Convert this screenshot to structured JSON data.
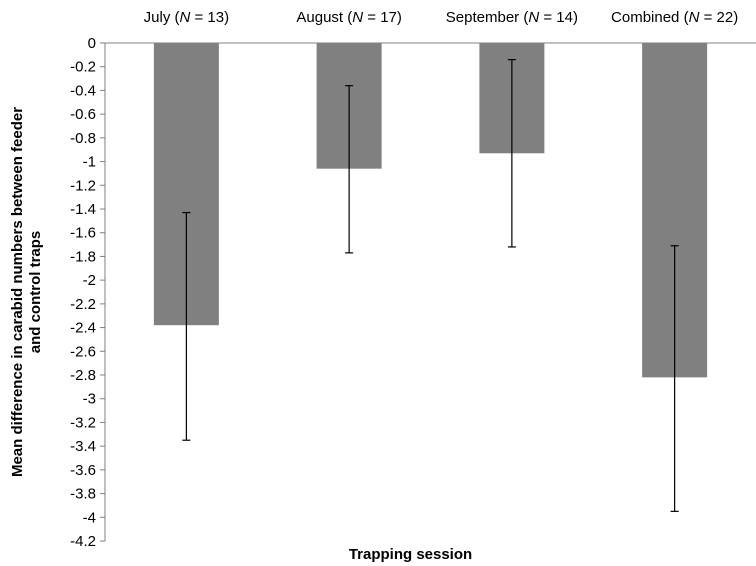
{
  "chart_data": {
    "type": "bar",
    "title": "",
    "xlabel": "Trapping session",
    "ylabel_lines": [
      "Mean difference in carabid numbers between feeder",
      "and control traps"
    ],
    "categories": [
      {
        "prefix": "July (",
        "n": "N",
        "suffix": " = 13)"
      },
      {
        "prefix": "August (",
        "n": "N",
        "suffix": " = 17)"
      },
      {
        "prefix": "September (",
        "n": "N",
        "suffix": " = 14)"
      },
      {
        "prefix": "Combined (",
        "n": "N",
        "suffix": " = 22)"
      }
    ],
    "values": [
      -2.38,
      -1.06,
      -0.93,
      -2.82
    ],
    "error_low": [
      -3.35,
      -1.77,
      -1.72,
      -3.95
    ],
    "error_high": [
      -1.43,
      -0.36,
      -0.14,
      -1.71
    ],
    "ylim": [
      -4.2,
      0
    ],
    "yticks": [
      "0",
      "-0.2",
      "-0.4",
      "-0.6",
      "-0.8",
      "-1",
      "-1.2",
      "-1.4",
      "-1.6",
      "-1.8",
      "-2",
      "-2.2",
      "-2.4",
      "-2.6",
      "-2.8",
      "-3",
      "-3.2",
      "-3.4",
      "-3.6",
      "-3.8",
      "-4",
      "-4.2"
    ],
    "bar_color": "#808080",
    "axis_color": "#808080",
    "grid": false,
    "legend": "none"
  }
}
